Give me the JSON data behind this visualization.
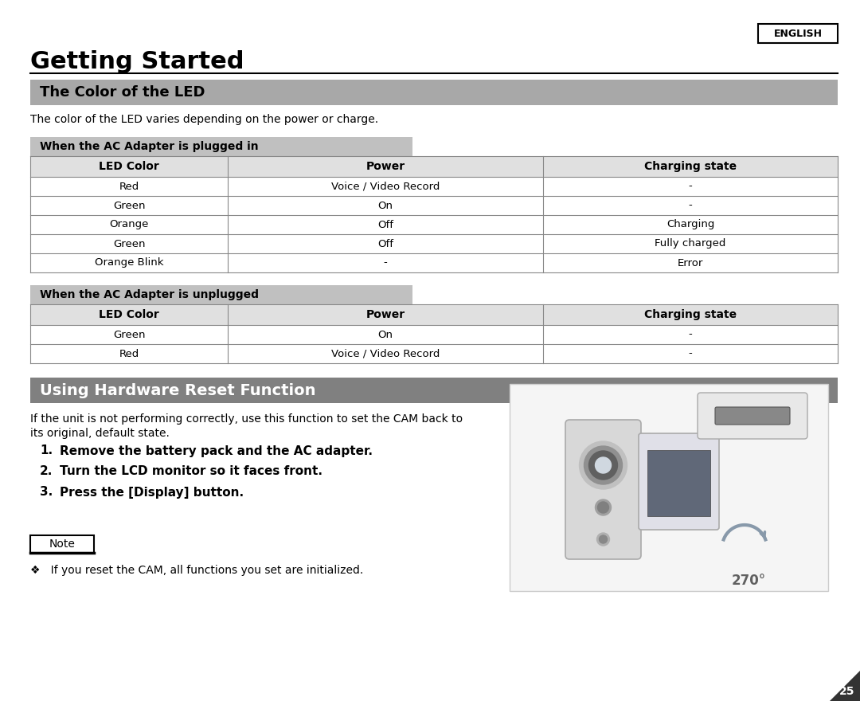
{
  "page_bg": "#ffffff",
  "english_label": "ENGLISH",
  "title": "Getting Started",
  "section1_title": "The Color of the LED",
  "section1_bg": "#a8a8a8",
  "section2_title": "Using Hardware Reset Function",
  "section2_bg": "#808080",
  "subtitle_text": "The color of the LED varies depending on the power or charge.",
  "subsection1_title": "When the AC Adapter is plugged in",
  "subsection1_bg": "#c0c0c0",
  "subsection2_title": "When the AC Adapter is unplugged",
  "subsection2_bg": "#c0c0c0",
  "table1_headers": [
    "LED Color",
    "Power",
    "Charging state"
  ],
  "table1_rows": [
    [
      "Red",
      "Voice / Video Record",
      "-"
    ],
    [
      "Green",
      "On",
      "-"
    ],
    [
      "Orange",
      "Off",
      "Charging"
    ],
    [
      "Green",
      "Off",
      "Fully charged"
    ],
    [
      "Orange Blink",
      "-",
      "Error"
    ]
  ],
  "table2_headers": [
    "LED Color",
    "Power",
    "Charging state"
  ],
  "table2_rows": [
    [
      "Green",
      "On",
      "-"
    ],
    [
      "Red",
      "Voice / Video Record",
      "-"
    ]
  ],
  "reset_intro_line1": "If the unit is not performing correctly, use this function to set the CAM back to",
  "reset_intro_line2": "its original, default state.",
  "reset_steps": [
    "Remove the battery pack and the AC adapter.",
    "Turn the LCD monitor so it faces front.",
    "Press the [Display] button."
  ],
  "note_label": "Note",
  "note_text": "❖   If you reset the CAM, all functions you set are initialized.",
  "page_number": "25"
}
